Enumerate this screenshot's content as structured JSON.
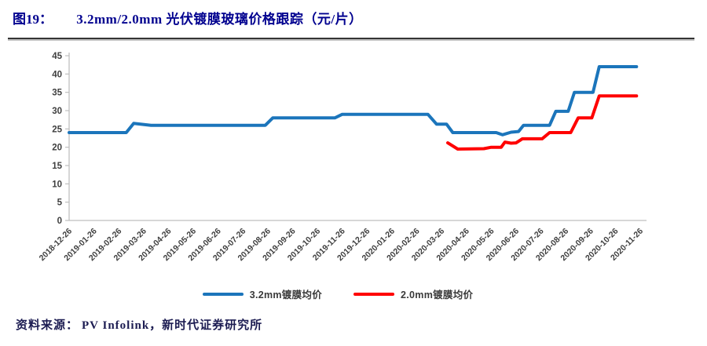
{
  "figure": {
    "label": "图19：",
    "title": "3.2mm/2.0mm 光伏镀膜玻璃价格跟踪（元/片）"
  },
  "footer": {
    "source_label": "资料来源：",
    "source_text": "PV Infolink，新时代证券研究所"
  },
  "colors": {
    "title": "#00008F",
    "axis": "#bfbfbf",
    "tick_label": "#3f3f3f",
    "series1": "#1B75BB",
    "series2": "#FF0000"
  },
  "chart_data": {
    "type": "line",
    "title": "3.2mm/2.0mm 光伏镀膜玻璃价格跟踪（元/片）",
    "unit": "元/片",
    "ylim": [
      0,
      45
    ],
    "y_ticks": [
      45,
      40,
      35,
      30,
      25,
      20,
      15,
      10,
      5,
      0
    ],
    "grid": false,
    "legend_position": "bottom",
    "x_tick_labels": [
      "2018-12-26",
      "2019-01-26",
      "2019-02-26",
      "2019-03-26",
      "2019-04-26",
      "2019-05-26",
      "2019-06-26",
      "2019-07-26",
      "2019-08-26",
      "2019-09-26",
      "2019-10-26",
      "2019-11-26",
      "2019-12-26",
      "2020-01-26",
      "2020-02-26",
      "2020-03-26",
      "2020-04-26",
      "2020-05-26",
      "2020-06-26",
      "2020-07-26",
      "2020-08-26",
      "2020-09-26",
      "2020-10-26",
      "2020-11-26"
    ],
    "x_unit": "months after 2018-12-26",
    "series": [
      {
        "name": "3.2mm镀膜均价",
        "color": "#1B75BB",
        "points": [
          [
            0,
            24
          ],
          [
            2.3,
            24
          ],
          [
            2.6,
            26.5
          ],
          [
            3.3,
            26
          ],
          [
            7.9,
            26
          ],
          [
            8.2,
            28
          ],
          [
            10.7,
            28
          ],
          [
            11.0,
            29
          ],
          [
            14.45,
            29
          ],
          [
            14.8,
            26.3
          ],
          [
            15.2,
            26.3
          ],
          [
            15.45,
            24
          ],
          [
            17.2,
            24
          ],
          [
            17.45,
            23.4
          ],
          [
            17.8,
            24.1
          ],
          [
            18.1,
            24.3
          ],
          [
            18.3,
            26
          ],
          [
            19.35,
            26
          ],
          [
            19.6,
            29.8
          ],
          [
            20.1,
            29.8
          ],
          [
            20.35,
            35
          ],
          [
            21.1,
            35
          ],
          [
            21.35,
            42
          ],
          [
            22.85,
            42
          ]
        ]
      },
      {
        "name": "2.0mm镀膜均价",
        "color": "#FF0000",
        "points": [
          [
            15.25,
            21.2
          ],
          [
            15.65,
            19.5
          ],
          [
            16.7,
            19.6
          ],
          [
            17.0,
            20
          ],
          [
            17.4,
            20
          ],
          [
            17.55,
            21.4
          ],
          [
            17.8,
            21.1
          ],
          [
            18.0,
            21.2
          ],
          [
            18.25,
            22.3
          ],
          [
            19.05,
            22.3
          ],
          [
            19.35,
            24
          ],
          [
            20.2,
            24
          ],
          [
            20.5,
            28
          ],
          [
            21.05,
            28
          ],
          [
            21.35,
            34
          ],
          [
            22.85,
            34
          ]
        ]
      }
    ]
  }
}
